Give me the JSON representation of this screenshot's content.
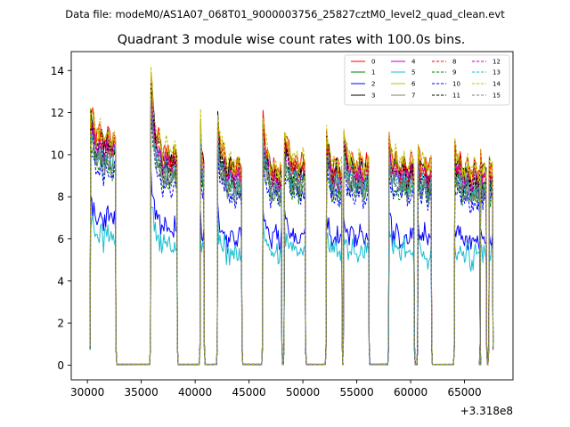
{
  "chart_data": {
    "type": "line",
    "suptitle": "Data file: modeM0/AS1A07_068T01_9000003756_25827cztM0_level2_quad_clean.evt",
    "title": "Quadrant 3 module wise count rates with 100.0s bins.",
    "xlabel": "",
    "ylabel": "",
    "x_offset_label": "+3.318e8",
    "xlim": [
      28500,
      69500
    ],
    "ylim": [
      -0.7,
      14.9
    ],
    "xticks": [
      30000,
      35000,
      40000,
      45000,
      50000,
      55000,
      60000,
      65000
    ],
    "xtick_labels": [
      "30000",
      "35000",
      "40000",
      "45000",
      "50000",
      "55000",
      "60000",
      "65000"
    ],
    "yticks": [
      0,
      2,
      4,
      6,
      8,
      10,
      12,
      14
    ],
    "ytick_labels": [
      "0",
      "2",
      "4",
      "6",
      "8",
      "10",
      "12",
      "14"
    ],
    "legend_position": "top-right",
    "legend_columns": 4,
    "gti_segments": [
      {
        "start": 30300,
        "end": 32600,
        "level": 10.6,
        "peak": 11.8
      },
      {
        "start": 35900,
        "end": 38300,
        "level": 9.8,
        "peak": 13.5
      },
      {
        "start": 40500,
        "end": 40800,
        "level": 9.8,
        "peak": 11.2
      },
      {
        "start": 42100,
        "end": 44300,
        "level": 9.2,
        "peak": 11.6
      },
      {
        "start": 46300,
        "end": 48000,
        "level": 9.1,
        "peak": 11.8
      },
      {
        "start": 48300,
        "end": 50200,
        "level": 9.4,
        "peak": 11.0
      },
      {
        "start": 52200,
        "end": 53600,
        "level": 9.2,
        "peak": 10.8
      },
      {
        "start": 53800,
        "end": 56100,
        "level": 9.3,
        "peak": 10.6
      },
      {
        "start": 58000,
        "end": 60300,
        "level": 9.3,
        "peak": 10.4
      },
      {
        "start": 60700,
        "end": 61900,
        "level": 9.2,
        "peak": 10.2
      },
      {
        "start": 64100,
        "end": 66400,
        "level": 9.0,
        "peak": 10.3
      },
      {
        "start": 66500,
        "end": 67000,
        "level": 8.9,
        "peak": 10.0
      },
      {
        "start": 67300,
        "end": 67600,
        "level": 8.8,
        "peak": 9.6
      }
    ],
    "gap_level": 0.0,
    "series": [
      {
        "name": "0",
        "color": "#ff0000",
        "style": "solid",
        "scale": 1.02
      },
      {
        "name": "1",
        "color": "#008000",
        "style": "solid",
        "scale": 0.92
      },
      {
        "name": "2",
        "color": "#0000ff",
        "style": "solid",
        "scale": 0.68
      },
      {
        "name": "3",
        "color": "#000000",
        "style": "solid",
        "scale": 1.0
      },
      {
        "name": "4",
        "color": "#bf00bf",
        "style": "solid",
        "scale": 0.97
      },
      {
        "name": "5",
        "color": "#17becf",
        "style": "solid",
        "scale": 0.6
      },
      {
        "name": "6",
        "color": "#bfbf00",
        "style": "solid",
        "scale": 1.0
      },
      {
        "name": "7",
        "color": "#7f7f7f",
        "style": "solid",
        "scale": 0.9
      },
      {
        "name": "8",
        "color": "#ff0000",
        "style": "dashed",
        "scale": 0.98
      },
      {
        "name": "9",
        "color": "#008000",
        "style": "dashed",
        "scale": 0.88
      },
      {
        "name": "10",
        "color": "#0000ff",
        "style": "dashed",
        "scale": 0.86
      },
      {
        "name": "11",
        "color": "#000000",
        "style": "dashed",
        "scale": 0.95
      },
      {
        "name": "12",
        "color": "#bf00bf",
        "style": "dashed",
        "scale": 0.96
      },
      {
        "name": "13",
        "color": "#17becf",
        "style": "dashed",
        "scale": 0.93
      },
      {
        "name": "14",
        "color": "#bfbf00",
        "style": "dashed",
        "scale": 1.04
      },
      {
        "name": "15",
        "color": "#7f7f7f",
        "style": "dashed",
        "scale": 0.9
      }
    ]
  }
}
